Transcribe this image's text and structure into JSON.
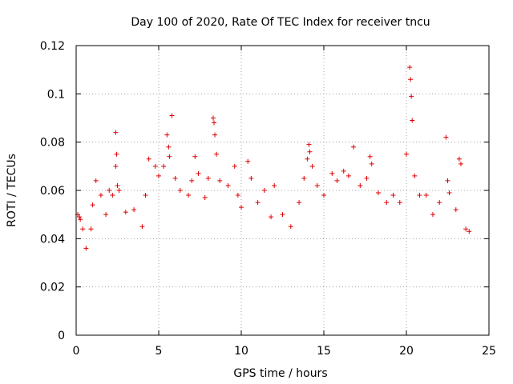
{
  "chart_data": {
    "type": "scatter",
    "title": "Day 100 of 2020, Rate Of TEC Index for receiver tncu",
    "xlabel": "GPS time / hours",
    "ylabel": "ROTI / TECUs",
    "xlim": [
      0,
      25
    ],
    "ylim": [
      0,
      0.12
    ],
    "x_ticks": [
      "0",
      "5",
      "10",
      "15",
      "20",
      "25"
    ],
    "y_ticks": [
      "0",
      "0.02",
      "0.04",
      "0.06",
      "0.08",
      "0.1",
      "0.12"
    ],
    "grid": true,
    "marker": "+",
    "color": "#e00000",
    "series": [
      {
        "points": [
          [
            0.1,
            0.05
          ],
          [
            0.2,
            0.049
          ],
          [
            0.25,
            0.048
          ],
          [
            0.4,
            0.044
          ],
          [
            0.6,
            0.036
          ],
          [
            0.9,
            0.044
          ],
          [
            1.0,
            0.054
          ],
          [
            1.2,
            0.064
          ],
          [
            1.5,
            0.058
          ],
          [
            1.8,
            0.05
          ],
          [
            2.0,
            0.06
          ],
          [
            2.2,
            0.058
          ],
          [
            2.4,
            0.084
          ],
          [
            2.45,
            0.075
          ],
          [
            2.4,
            0.07
          ],
          [
            2.5,
            0.062
          ],
          [
            2.6,
            0.06
          ],
          [
            3.0,
            0.051
          ],
          [
            3.5,
            0.052
          ],
          [
            4.0,
            0.045
          ],
          [
            4.2,
            0.058
          ],
          [
            4.4,
            0.073
          ],
          [
            4.8,
            0.07
          ],
          [
            5.0,
            0.066
          ],
          [
            5.3,
            0.07
          ],
          [
            5.5,
            0.083
          ],
          [
            5.6,
            0.078
          ],
          [
            5.65,
            0.074
          ],
          [
            5.8,
            0.091
          ],
          [
            6.0,
            0.065
          ],
          [
            6.3,
            0.06
          ],
          [
            6.8,
            0.058
          ],
          [
            7.0,
            0.064
          ],
          [
            7.2,
            0.074
          ],
          [
            7.4,
            0.067
          ],
          [
            7.8,
            0.057
          ],
          [
            8.0,
            0.065
          ],
          [
            8.3,
            0.09
          ],
          [
            8.35,
            0.088
          ],
          [
            8.4,
            0.083
          ],
          [
            8.5,
            0.075
          ],
          [
            8.7,
            0.064
          ],
          [
            9.2,
            0.062
          ],
          [
            9.6,
            0.07
          ],
          [
            9.8,
            0.058
          ],
          [
            10.0,
            0.053
          ],
          [
            10.4,
            0.072
          ],
          [
            10.6,
            0.065
          ],
          [
            11.0,
            0.055
          ],
          [
            11.4,
            0.06
          ],
          [
            11.8,
            0.049
          ],
          [
            12.0,
            0.062
          ],
          [
            12.5,
            0.05
          ],
          [
            13.0,
            0.045
          ],
          [
            13.5,
            0.055
          ],
          [
            13.8,
            0.065
          ],
          [
            14.0,
            0.073
          ],
          [
            14.1,
            0.079
          ],
          [
            14.15,
            0.076
          ],
          [
            14.3,
            0.07
          ],
          [
            14.6,
            0.062
          ],
          [
            15.0,
            0.058
          ],
          [
            15.5,
            0.067
          ],
          [
            15.8,
            0.064
          ],
          [
            16.2,
            0.068
          ],
          [
            16.5,
            0.066
          ],
          [
            16.8,
            0.078
          ],
          [
            17.2,
            0.062
          ],
          [
            17.6,
            0.065
          ],
          [
            17.8,
            0.074
          ],
          [
            17.9,
            0.071
          ],
          [
            18.3,
            0.059
          ],
          [
            18.8,
            0.055
          ],
          [
            19.2,
            0.058
          ],
          [
            19.6,
            0.055
          ],
          [
            20.0,
            0.075
          ],
          [
            20.2,
            0.111
          ],
          [
            20.25,
            0.106
          ],
          [
            20.3,
            0.099
          ],
          [
            20.35,
            0.089
          ],
          [
            20.5,
            0.066
          ],
          [
            20.8,
            0.058
          ],
          [
            21.2,
            0.058
          ],
          [
            21.6,
            0.05
          ],
          [
            22.0,
            0.055
          ],
          [
            22.4,
            0.082
          ],
          [
            22.5,
            0.064
          ],
          [
            22.6,
            0.059
          ],
          [
            23.0,
            0.052
          ],
          [
            23.2,
            0.073
          ],
          [
            23.3,
            0.071
          ],
          [
            23.6,
            0.044
          ],
          [
            23.8,
            0.043
          ]
        ]
      }
    ]
  }
}
